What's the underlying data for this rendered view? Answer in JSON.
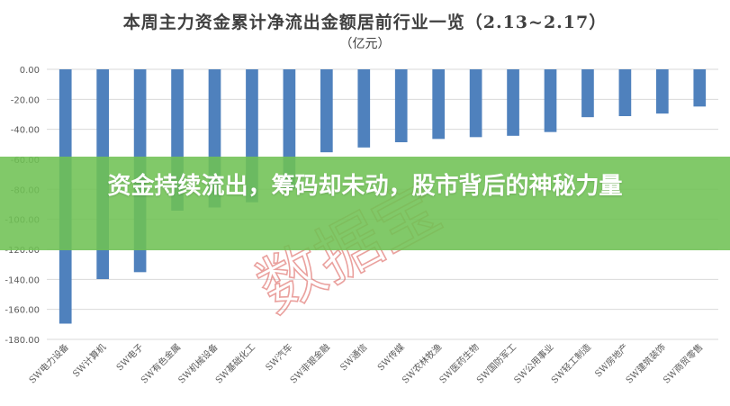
{
  "chart_data": {
    "type": "bar",
    "title": "本周主力资金累计净流出金额居前行业一览（2.13~2.17）",
    "subtitle": "（亿元）",
    "categories": [
      "SW电力设备",
      "SW计算机",
      "SW电子",
      "SW有色金属",
      "SW机械设备",
      "SW基础化工",
      "SW汽车",
      "SW非银金融",
      "SW通信",
      "SW传媒",
      "SW农林牧渔",
      "SW医药生物",
      "SW国防军工",
      "SW公用事业",
      "SW轻工制造",
      "SW房地产",
      "SW建筑装饰",
      "SW商贸零售"
    ],
    "values": [
      -169.5,
      -139.8,
      -135.2,
      -94.2,
      -92.1,
      -88.6,
      -79.5,
      -55.3,
      -52.1,
      -48.6,
      -46.4,
      -45.2,
      -44.3,
      -41.8,
      -31.9,
      -31.2,
      -29.5,
      -24.8
    ],
    "y_ticks": [
      "0.00",
      "-20.00",
      "-40.00",
      "-60.00",
      "-80.00",
      "-100.00",
      "-120.00",
      "-140.00",
      "-160.00",
      "-180.00"
    ],
    "ylim": [
      -180,
      0
    ],
    "grid": true,
    "bar_color": "#4f81bd",
    "watermark": "数据宝",
    "watermark_color": "#d9534f"
  },
  "banner": {
    "headline": "资金持续流出，筹码却未动，股市背后的神秘力量",
    "color": "#70c254"
  }
}
